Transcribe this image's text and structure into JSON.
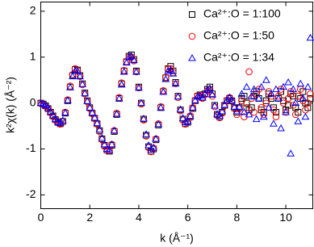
{
  "chart_data": {
    "type": "scatter",
    "xlabel": "k (Å⁻¹)",
    "ylabel": "k²χ(k) (Å⁻²)",
    "xlim": [
      0,
      11.1
    ],
    "ylim": [
      -2.3,
      2.2
    ],
    "xticks": [
      0,
      2,
      4,
      6,
      8,
      10
    ],
    "yticks": [
      -2,
      -1,
      0,
      1,
      2
    ],
    "legend": "top-right",
    "x": [
      0,
      0.1,
      0.2,
      0.3,
      0.4,
      0.5,
      0.6,
      0.7,
      0.8,
      0.9,
      1,
      1.1,
      1.2,
      1.3,
      1.4,
      1.5,
      1.6,
      1.7,
      1.8,
      1.9,
      2,
      2.1,
      2.2,
      2.3,
      2.4,
      2.5,
      2.6,
      2.7,
      2.8,
      2.9,
      3,
      3.1,
      3.2,
      3.3,
      3.4,
      3.5,
      3.6,
      3.7,
      3.8,
      3.9,
      4,
      4.1,
      4.2,
      4.3,
      4.4,
      4.5,
      4.6,
      4.7,
      4.8,
      4.9,
      5,
      5.1,
      5.2,
      5.3,
      5.4,
      5.5,
      5.6,
      5.7,
      5.8,
      5.9,
      6,
      6.1,
      6.2,
      6.3,
      6.4,
      6.5,
      6.6,
      6.7,
      6.8,
      6.9,
      7,
      7.1,
      7.2,
      7.3,
      7.4,
      7.5,
      7.6,
      7.7,
      7.8,
      7.9,
      8,
      8.1,
      8.2,
      8.3,
      8.4,
      8.5,
      8.6,
      8.7,
      8.8,
      8.9,
      9,
      9.1,
      9.2,
      9.3,
      9.4,
      9.5,
      9.6,
      9.7,
      9.8,
      9.9,
      10,
      10.1,
      10.2,
      10.3,
      10.4,
      10.5,
      10.6,
      10.7,
      10.8,
      10.9,
      11
    ],
    "series": [
      {
        "name": "Ca²⁺:O = 1:100",
        "color": "#000000",
        "marker": "square",
        "values": [
          0,
          -0.02,
          -0.06,
          -0.12,
          -0.2,
          -0.28,
          -0.36,
          -0.42,
          -0.45,
          -0.4,
          -0.22,
          0.05,
          0.35,
          0.6,
          0.73,
          0.72,
          0.6,
          0.42,
          0.22,
          0.05,
          -0.1,
          -0.22,
          -0.33,
          -0.45,
          -0.6,
          -0.78,
          -0.92,
          -1.02,
          -1.05,
          -0.92,
          -0.62,
          -0.25,
          0.1,
          0.42,
          0.7,
          0.9,
          1.02,
          1.05,
          0.95,
          0.7,
          0.35,
          0,
          -0.35,
          -0.7,
          -0.95,
          -1.05,
          -1,
          -0.8,
          -0.48,
          -0.1,
          0.25,
          0.55,
          0.75,
          0.8,
          0.7,
          0.45,
          0.15,
          -0.15,
          -0.35,
          -0.45,
          -0.42,
          -0.3,
          -0.12,
          0.05,
          0.15,
          0.18,
          0.12,
          0.2,
          0.3,
          0.35,
          0.2,
          -0.05,
          -0.25,
          -0.3,
          -0.2,
          -0.05,
          0.05,
          0.1,
          0.05,
          -0.1,
          -0.2,
          -0.1,
          0.1,
          0.15,
          0,
          -0.15,
          -0.1,
          0.15,
          0.25,
          0.1,
          -0.15,
          -0.2,
          0.05,
          0.2,
          0.1,
          -0.1,
          -0.2,
          0.1,
          0.25,
          0.05,
          -0.15,
          -0.05,
          0.2,
          0.15,
          -0.1,
          -0.2,
          0.1,
          0.25,
          0,
          -0.1,
          0.1
        ]
      },
      {
        "name": "Ca²⁺:O = 1:50",
        "color": "#ff0000",
        "marker": "circle",
        "values": [
          0,
          -0.03,
          -0.07,
          -0.13,
          -0.21,
          -0.29,
          -0.37,
          -0.43,
          -0.46,
          -0.41,
          -0.2,
          0.07,
          0.37,
          0.62,
          0.75,
          0.71,
          0.58,
          0.4,
          0.2,
          0.03,
          -0.12,
          -0.23,
          -0.34,
          -0.46,
          -0.62,
          -0.8,
          -0.94,
          -1.03,
          -1.04,
          -0.9,
          -0.6,
          -0.22,
          0.12,
          0.44,
          0.71,
          0.9,
          1,
          1,
          0.92,
          0.68,
          0.33,
          -0.02,
          -0.37,
          -0.72,
          -0.97,
          -1.06,
          -0.98,
          -0.78,
          -0.45,
          -0.08,
          0.27,
          0.56,
          0.74,
          0.75,
          0.66,
          0.42,
          0.12,
          -0.17,
          -0.37,
          -0.46,
          -0.4,
          -0.28,
          -0.1,
          0.06,
          0.16,
          0.17,
          0.1,
          0.18,
          0.27,
          0.3,
          0.15,
          -0.08,
          -0.27,
          -0.32,
          -0.22,
          -0.06,
          0.06,
          0.12,
          0.04,
          -0.12,
          -0.25,
          -0.12,
          0.05,
          -0.3,
          -0.1,
          0.68,
          0.1,
          -0.2,
          0.2,
          0.3,
          -0.1,
          -0.25,
          0,
          0.25,
          0.15,
          -0.15,
          -0.3,
          0.15,
          0.3,
          0,
          -0.2,
          0.1,
          0.25,
          -0.05,
          -0.25,
          0.15,
          0.3,
          0.05,
          -0.15,
          0,
          0.2
        ]
      },
      {
        "name": "Ca²⁺:O = 1:34",
        "color": "#0000ff",
        "marker": "triangle",
        "values": [
          0,
          -0.02,
          -0.05,
          -0.11,
          -0.19,
          -0.27,
          -0.35,
          -0.41,
          -0.44,
          -0.38,
          -0.21,
          0.06,
          0.34,
          0.58,
          0.7,
          0.7,
          0.58,
          0.41,
          0.21,
          0.04,
          -0.1,
          -0.21,
          -0.32,
          -0.44,
          -0.58,
          -0.76,
          -0.9,
          -1,
          -1.03,
          -0.9,
          -0.6,
          -0.24,
          0.1,
          0.4,
          0.68,
          0.88,
          1,
          1.02,
          0.93,
          0.68,
          0.33,
          0,
          -0.34,
          -0.68,
          -0.92,
          -1.02,
          -0.97,
          -0.78,
          -0.46,
          -0.1,
          0.24,
          0.52,
          0.7,
          0.72,
          0.64,
          0.42,
          0.14,
          -0.14,
          -0.33,
          -0.42,
          -0.4,
          -0.28,
          -0.1,
          0.06,
          0.14,
          0.16,
          0.12,
          0.2,
          0.28,
          0.32,
          0.18,
          -0.06,
          -0.24,
          -0.28,
          -0.18,
          -0.04,
          0.06,
          0.12,
          0.06,
          -0.08,
          -0.18,
          -0.08,
          0.2,
          -0.2,
          0.35,
          -0.25,
          0.15,
          0.3,
          -0.35,
          0.1,
          0.35,
          -0.3,
          0.5,
          -0.1,
          0.2,
          -0.45,
          0.3,
          0.1,
          -0.55,
          0.35,
          -0.2,
          0.45,
          -1.1,
          0.3,
          0,
          -0.4,
          0.42,
          0.1,
          -0.3,
          0.35,
          1.42
        ]
      }
    ]
  }
}
